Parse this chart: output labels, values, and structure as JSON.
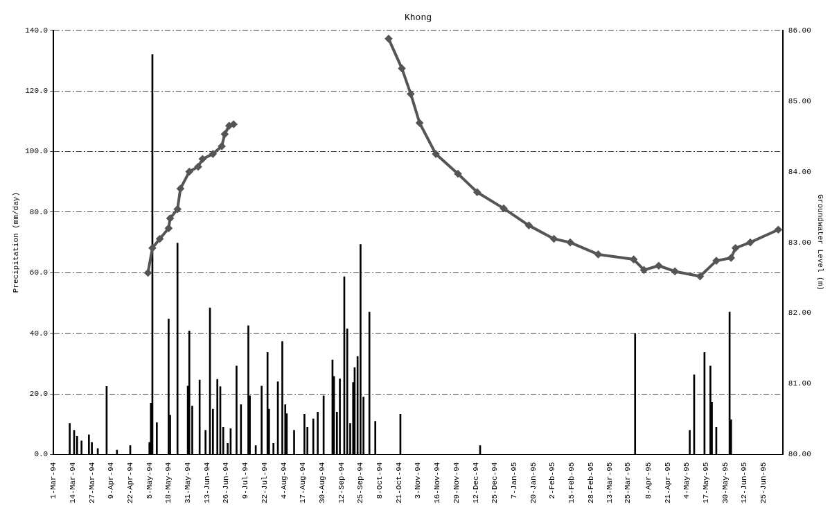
{
  "chart_data": {
    "type": "bar",
    "title": "Khong",
    "ylabel": "Precipitation (mm/day)",
    "y2label": "Groundwater Level (m)",
    "grid": "y",
    "legend": false,
    "xlim": [
      "1994-03-01",
      "1995-07-08"
    ],
    "xticks": [
      {
        "value": "1994-03-01",
        "label": "1-Mar-94"
      },
      {
        "value": "1994-03-14",
        "label": "14-Mar-94"
      },
      {
        "value": "1994-03-27",
        "label": "27-Mar-94"
      },
      {
        "value": "1994-04-09",
        "label": "9-Apr-94"
      },
      {
        "value": "1994-04-22",
        "label": "22-Apr-94"
      },
      {
        "value": "1994-05-05",
        "label": "5-May-94"
      },
      {
        "value": "1994-05-18",
        "label": "18-May-94"
      },
      {
        "value": "1994-05-31",
        "label": "31-May-94"
      },
      {
        "value": "1994-06-13",
        "label": "13-Jun-94"
      },
      {
        "value": "1994-06-26",
        "label": "26-Jun-94"
      },
      {
        "value": "1994-07-09",
        "label": "9-Jul-94"
      },
      {
        "value": "1994-07-22",
        "label": "22-Jul-94"
      },
      {
        "value": "1994-08-04",
        "label": "4-Aug-94"
      },
      {
        "value": "1994-08-17",
        "label": "17-Aug-94"
      },
      {
        "value": "1994-08-30",
        "label": "30-Aug-94"
      },
      {
        "value": "1994-09-12",
        "label": "12-Sep-94"
      },
      {
        "value": "1994-09-25",
        "label": "25-Sep-94"
      },
      {
        "value": "1994-10-08",
        "label": "8-Oct-94"
      },
      {
        "value": "1994-10-21",
        "label": "21-Oct-94"
      },
      {
        "value": "1994-11-03",
        "label": "3-Nov-94"
      },
      {
        "value": "1994-11-16",
        "label": "16-Nov-94"
      },
      {
        "value": "1994-11-29",
        "label": "29-Nov-94"
      },
      {
        "value": "1994-12-12",
        "label": "12-Dec-94"
      },
      {
        "value": "1994-12-25",
        "label": "25-Dec-94"
      },
      {
        "value": "1995-01-07",
        "label": "7-Jan-95"
      },
      {
        "value": "1995-01-20",
        "label": "20-Jan-95"
      },
      {
        "value": "1995-02-02",
        "label": "2-Feb-95"
      },
      {
        "value": "1995-02-15",
        "label": "15-Feb-95"
      },
      {
        "value": "1995-02-28",
        "label": "28-Feb-95"
      },
      {
        "value": "1995-03-13",
        "label": "13-Mar-95"
      },
      {
        "value": "1995-03-25",
        "label": "25-Mar-95"
      },
      {
        "value": "1995-04-08",
        "label": "8-Apr-95"
      },
      {
        "value": "1995-04-21",
        "label": "21-Apr-95"
      },
      {
        "value": "1995-05-04",
        "label": "4-May-95"
      },
      {
        "value": "1995-05-17",
        "label": "17-May-95"
      },
      {
        "value": "1995-05-30",
        "label": "30-May-95"
      },
      {
        "value": "1995-06-12",
        "label": "12-Jun-95"
      },
      {
        "value": "1995-06-25",
        "label": "25-Jun-95"
      }
    ],
    "ylim": [
      0,
      140
    ],
    "yticks": [
      {
        "value": 0,
        "label": "0.0"
      },
      {
        "value": 20,
        "label": "20.0"
      },
      {
        "value": 40,
        "label": "40.0"
      },
      {
        "value": 60,
        "label": "60.0"
      },
      {
        "value": 80,
        "label": "80.0"
      },
      {
        "value": 100,
        "label": "100.0"
      },
      {
        "value": 120,
        "label": "120.0"
      },
      {
        "value": 140,
        "label": "140.0"
      }
    ],
    "y2lim": [
      80,
      86
    ],
    "y2ticks": [
      {
        "value": 80,
        "label": "80.00"
      },
      {
        "value": 81,
        "label": "81.00"
      },
      {
        "value": 82,
        "label": "82.00"
      },
      {
        "value": 83,
        "label": "83.00"
      },
      {
        "value": 84,
        "label": "84.00"
      },
      {
        "value": 85,
        "label": "85.00"
      },
      {
        "value": 86,
        "label": "86.00"
      }
    ],
    "series": [
      {
        "color": "#000000",
        "x": [
          "1994-03-12",
          "1994-03-15",
          "1994-03-17",
          "1994-03-20",
          "1994-03-25",
          "1994-03-27",
          "1994-03-31",
          "1994-04-06",
          "1994-04-13",
          "1994-04-22",
          "1994-05-05",
          "1994-05-06",
          "1994-05-07",
          "1994-05-10",
          "1994-05-18",
          "1994-05-19",
          "1994-05-24",
          "1994-05-31",
          "1994-06-01",
          "1994-06-03",
          "1994-06-08",
          "1994-06-12",
          "1994-06-15",
          "1994-06-17",
          "1994-06-20",
          "1994-06-22",
          "1994-06-24",
          "1994-06-27",
          "1994-06-29",
          "1994-07-03",
          "1994-07-06",
          "1994-07-11",
          "1994-07-12",
          "1994-07-16",
          "1994-07-20",
          "1994-07-24",
          "1994-07-25",
          "1994-07-28",
          "1994-07-31",
          "1994-08-03",
          "1994-08-05",
          "1994-08-06",
          "1994-08-11",
          "1994-08-18",
          "1994-08-20",
          "1994-08-24",
          "1994-08-27",
          "1994-08-31",
          "1994-09-06",
          "1994-09-07",
          "1994-09-09",
          "1994-09-11",
          "1994-09-14",
          "1994-09-16",
          "1994-09-18",
          "1994-09-20",
          "1994-09-21",
          "1994-09-23",
          "1994-09-25",
          "1994-09-27",
          "1994-10-01",
          "1994-10-05",
          "1994-10-22",
          "1994-12-15",
          "1995-03-30",
          "1995-05-06",
          "1995-05-09",
          "1995-05-16",
          "1995-05-20",
          "1995-05-21",
          "1995-05-24",
          "1995-06-02",
          "1995-06-03"
        ],
        "values": [
          10.3,
          8,
          6,
          4.5,
          6.5,
          4,
          2,
          22.5,
          1.5,
          3,
          4,
          17,
          132,
          10.5,
          44.7,
          13,
          69.8,
          22.6,
          40.8,
          16,
          24.6,
          8,
          48.4,
          15,
          24.8,
          22.4,
          9,
          3.7,
          8.6,
          29.2,
          16.5,
          42.5,
          19.4,
          3,
          22.6,
          33.7,
          15,
          3.7,
          24,
          37.3,
          16.5,
          13.5,
          8,
          13.3,
          9,
          11.8,
          14,
          19.4,
          31.2,
          25.8,
          14,
          25,
          58.7,
          41.5,
          10.3,
          23.8,
          28.7,
          32.4,
          69.3,
          19,
          47,
          11,
          13.3,
          3,
          39.8,
          8,
          26.3,
          33.7,
          29.2,
          17.2,
          9,
          47,
          11.5
        ]
      },
      {
        "type": "line",
        "axis": "y2",
        "color": "#555555",
        "marker": "diamond",
        "x": [
          "1994-05-04",
          "1994-05-07",
          "1994-05-12",
          "1994-05-18",
          "1994-05-19",
          "1994-05-24",
          "1994-05-26",
          "1994-06-01",
          "1994-06-07",
          "1994-06-10",
          "1994-06-17",
          "1994-06-23",
          "1994-06-25",
          "1994-06-28",
          "1994-07-01",
          "1994-08-15",
          "1994-10-14",
          "1994-10-23",
          "1994-10-29",
          "1994-11-04",
          "1994-11-15",
          "1994-11-30",
          "1994-12-13",
          "1994-12-31",
          "1995-01-17",
          "1995-02-03",
          "1995-02-14",
          "1995-03-05",
          "1995-03-29",
          "1995-04-05",
          "1995-04-15",
          "1995-04-26",
          "1995-05-13",
          "1995-05-24",
          "1995-06-03",
          "1995-06-06",
          "1995-06-16",
          "1995-07-05"
        ],
        "values": [
          82.57,
          82.92,
          83.05,
          83.2,
          83.34,
          83.47,
          83.76,
          84.0,
          84.07,
          84.18,
          84.25,
          84.36,
          84.53,
          84.65,
          84.67,
          null,
          85.88,
          85.46,
          85.1,
          84.69,
          84.25,
          83.97,
          83.71,
          83.48,
          83.24,
          83.05,
          83.0,
          82.83,
          82.76,
          82.61,
          82.67,
          82.59,
          82.52,
          82.74,
          82.78,
          82.92,
          83.0,
          83.18
        ]
      }
    ]
  }
}
